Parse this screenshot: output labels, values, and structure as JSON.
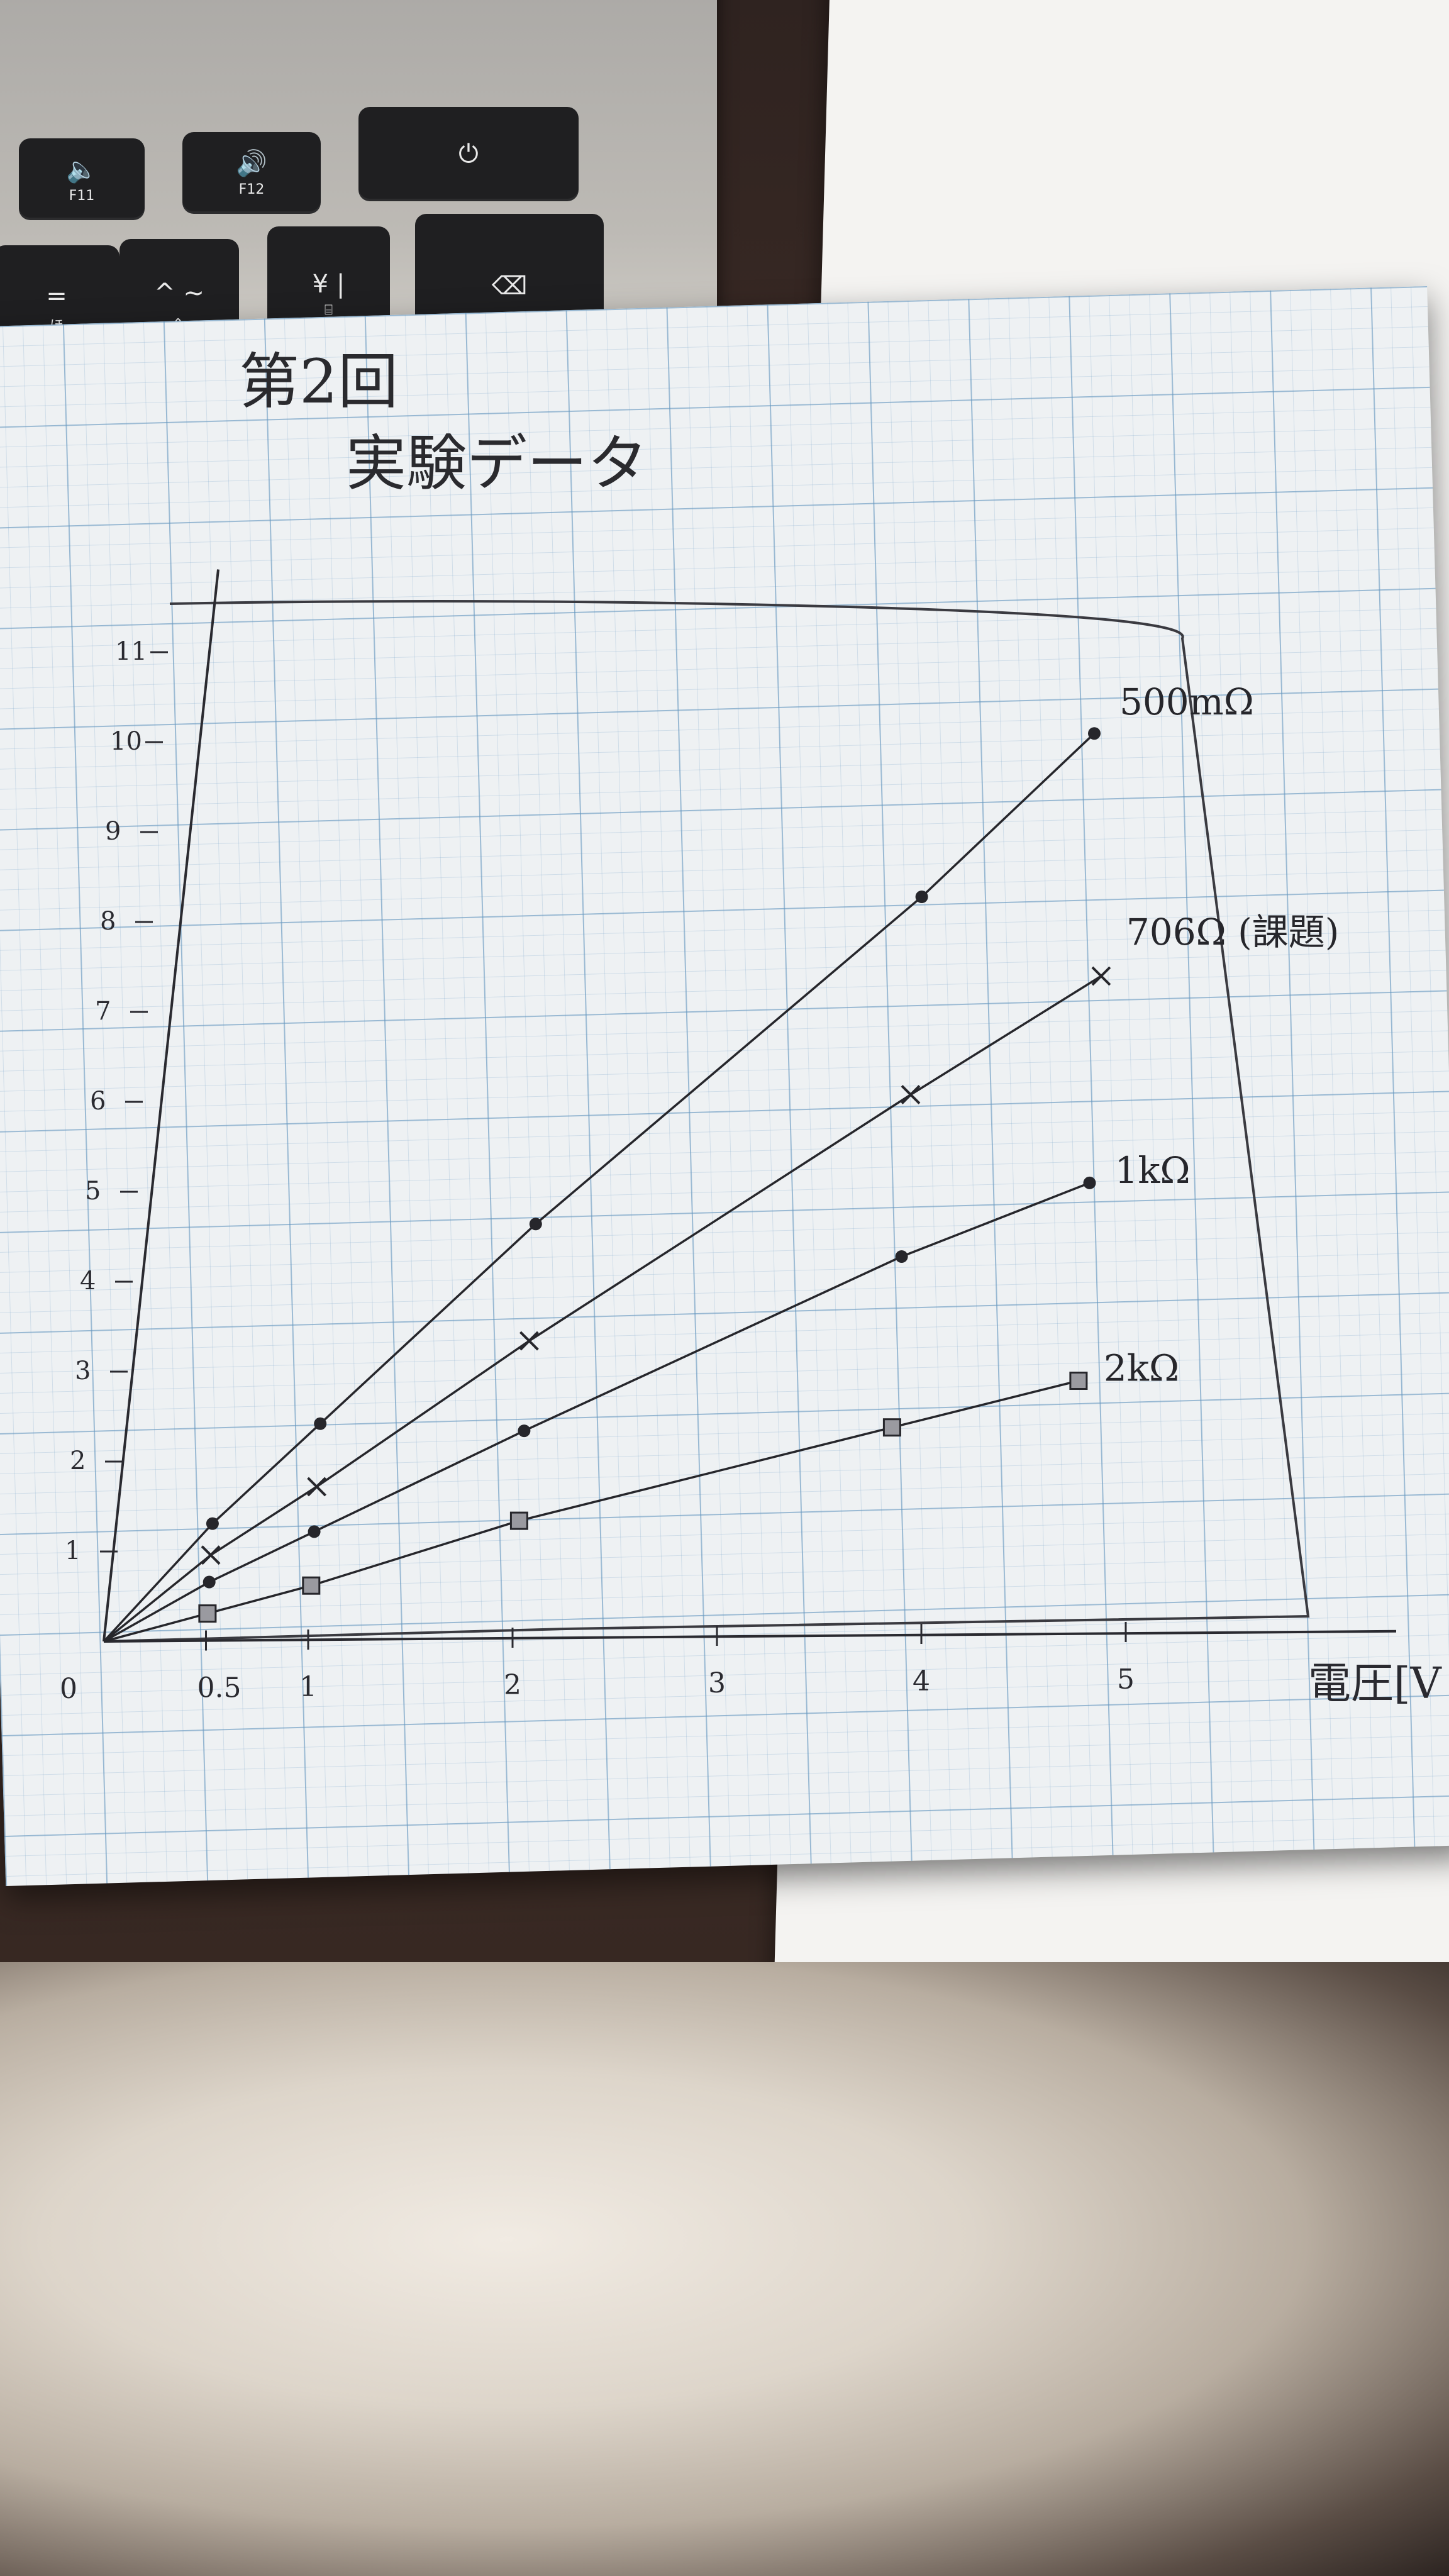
{
  "keyboard": {
    "keys": [
      {
        "main": "🔈",
        "sub": "F11"
      },
      {
        "main": "🔊",
        "sub": "F12"
      },
      {
        "main": "⏻",
        "sub": ""
      },
      {
        "main": "=",
        "sub": "ほ"
      },
      {
        "main": "^ ~",
        "sub": "へ"
      },
      {
        "main": "¥ |",
        "sub": "⌸"
      },
      {
        "main": "⌫",
        "sub": ""
      }
    ]
  },
  "paper": {
    "title_line1": "第2回",
    "title_line2": "実験データ"
  },
  "chart_data": {
    "type": "line",
    "title": "",
    "xlabel": "電圧[V",
    "ylabel": "",
    "xlim": [
      0,
      5.4
    ],
    "ylim": [
      0,
      11.5
    ],
    "x_ticks": [
      "0",
      "0.5",
      "1",
      "2",
      "3",
      "4",
      "5"
    ],
    "y_ticks": [
      "1",
      "2",
      "3",
      "4",
      "5",
      "6",
      "7",
      "8",
      "9",
      "10",
      "11"
    ],
    "grid": true,
    "series": [
      {
        "name": "500mΩ",
        "marker": "dot",
        "x": [
          0,
          0.5,
          1,
          2,
          3.8,
          4.6
        ],
        "y": [
          0,
          1.3,
          2.4,
          4.6,
          8.2,
          10.0
        ]
      },
      {
        "name": "706Ω (課題)",
        "marker": "x",
        "x": [
          0,
          0.5,
          1,
          2,
          3.8,
          4.7
        ],
        "y": [
          0,
          0.95,
          1.7,
          3.3,
          6.0,
          7.3
        ]
      },
      {
        "name": "1kΩ",
        "marker": "dot",
        "x": [
          0,
          0.5,
          1,
          2,
          3.8,
          4.7
        ],
        "y": [
          0,
          0.65,
          1.2,
          2.3,
          4.2,
          5.0
        ]
      },
      {
        "name": "2kΩ",
        "marker": "square",
        "x": [
          0,
          0.5,
          1,
          2,
          3.8,
          4.7
        ],
        "y": [
          0,
          0.3,
          0.6,
          1.3,
          2.3,
          2.8
        ]
      }
    ]
  }
}
